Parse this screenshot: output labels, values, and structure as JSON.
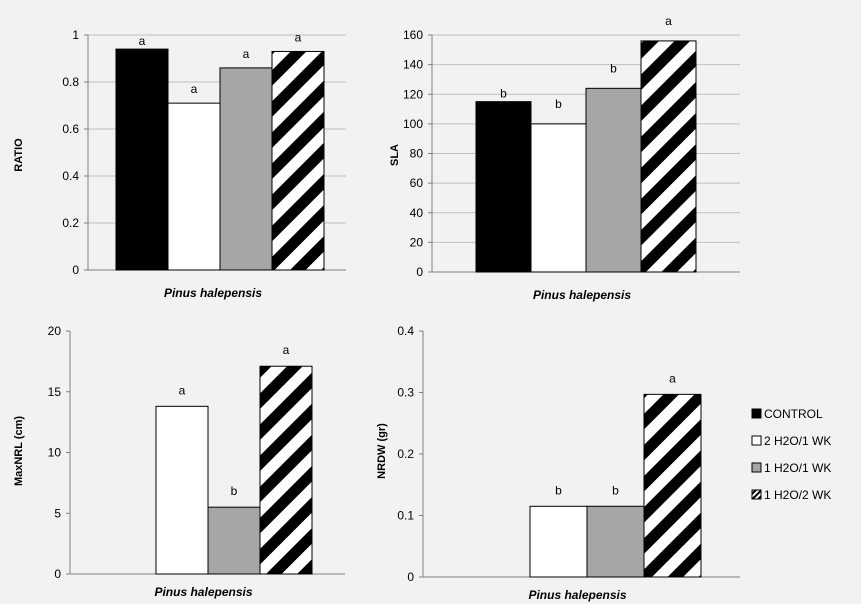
{
  "chart_data": [
    {
      "type": "bar",
      "ylabel": "RATIO",
      "xlabel": "Pinus halepensis",
      "ylim": [
        0,
        1
      ],
      "yticks": [
        "0",
        "0.2",
        "0.4",
        "0.6",
        "0.8",
        "1"
      ],
      "grid": true,
      "series": [
        {
          "name": "CONTROL",
          "values": [
            0.94
          ],
          "labels": [
            "a"
          ]
        },
        {
          "name": "2 H2O/1 WK",
          "values": [
            0.71
          ],
          "labels": [
            "a"
          ]
        },
        {
          "name": "1 H2O/1 WK",
          "values": [
            0.86
          ],
          "labels": [
            "a"
          ]
        },
        {
          "name": "1 H2O/2 WK",
          "values": [
            0.93
          ],
          "labels": [
            "a"
          ]
        }
      ]
    },
    {
      "type": "bar",
      "ylabel": "SLA",
      "xlabel": "Pinus halepensis",
      "ylim": [
        0,
        160
      ],
      "yticks": [
        "0",
        "20",
        "40",
        "60",
        "80",
        "100",
        "120",
        "140",
        "160"
      ],
      "grid": true,
      "series": [
        {
          "name": "CONTROL",
          "values": [
            115
          ],
          "labels": [
            "b"
          ]
        },
        {
          "name": "2 H2O/1 WK",
          "values": [
            100
          ],
          "labels": [
            "b"
          ]
        },
        {
          "name": "1 H2O/1 WK",
          "values": [
            124
          ],
          "labels": [
            "b"
          ]
        },
        {
          "name": "1 H2O/2 WK",
          "values": [
            156
          ],
          "labels": [
            "a"
          ]
        }
      ]
    },
    {
      "type": "bar",
      "ylabel": "MaxNRL (cm)",
      "xlabel": "Pinus halepensis",
      "ylim": [
        0,
        20
      ],
      "yticks": [
        "0",
        "5",
        "10",
        "15",
        "20"
      ],
      "grid": false,
      "series": [
        {
          "name": "CONTROL",
          "values": [
            0
          ],
          "labels": [
            ""
          ]
        },
        {
          "name": "2 H2O/1 WK",
          "values": [
            13.8
          ],
          "labels": [
            "a"
          ]
        },
        {
          "name": "1 H2O/1 WK",
          "values": [
            5.5
          ],
          "labels": [
            "b"
          ]
        },
        {
          "name": "1 H2O/2 WK",
          "values": [
            17.1
          ],
          "labels": [
            "a"
          ]
        }
      ]
    },
    {
      "type": "bar",
      "ylabel": "NRDW (gr)",
      "xlabel": "Pinus halepensis",
      "ylim": [
        0,
        0.4
      ],
      "yticks": [
        "0",
        "0.1",
        "0.2",
        "0.3",
        "0.4"
      ],
      "grid": false,
      "series": [
        {
          "name": "CONTROL",
          "values": [
            0
          ],
          "labels": [
            ""
          ]
        },
        {
          "name": "2 H2O/1 WK",
          "values": [
            0.115
          ],
          "labels": [
            "b"
          ]
        },
        {
          "name": "1 H2O/1 WK",
          "values": [
            0.115
          ],
          "labels": [
            "b"
          ]
        },
        {
          "name": "1 H2O/2 WK",
          "values": [
            0.297
          ],
          "labels": [
            "a"
          ]
        }
      ]
    }
  ],
  "legend": {
    "placement": "right",
    "entries": [
      "CONTROL",
      "2 H2O/1 WK",
      "1 H2O/1 WK",
      "1 H2O/2 WK"
    ]
  },
  "colors": {
    "CONTROL": "#000000",
    "2 H2O/1 WK": "#ffffff",
    "1 H2O/1 WK": "#a6a6a6",
    "1 H2O/2 WK": "hatch"
  }
}
